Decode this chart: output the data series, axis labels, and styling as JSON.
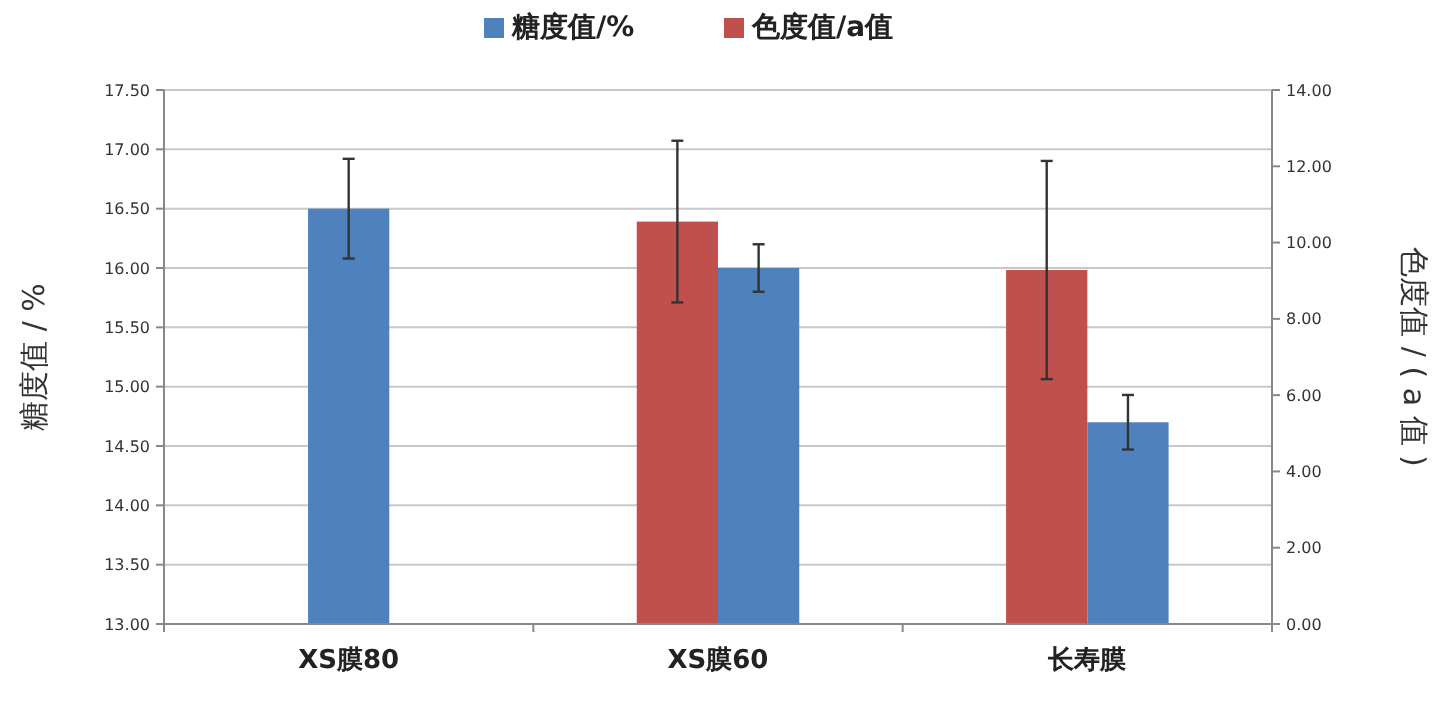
{
  "chart_data": {
    "type": "bar",
    "categories": [
      "XS膜80",
      "XS膜60",
      "长寿膜"
    ],
    "ylabel": "糖度值 / %",
    "y2label": "色度值 / ( a 值 )",
    "series": [
      {
        "name": "糖度值/%",
        "color": "#4f81bd",
        "values": [
          16.5,
          16.0,
          14.7
        ],
        "errors": [
          0.42,
          0.2,
          0.23
        ]
      },
      {
        "name": "色度值/a值",
        "color": "#c0504d",
        "axis": "y2",
        "values": [
          null,
          10.55,
          9.28
        ],
        "errors": [
          null,
          2.12,
          2.86
        ]
      }
    ],
    "ylim": [
      13,
      17.5
    ],
    "yticks": [
      {
        "value": 13,
        "label": "13.00"
      },
      {
        "value": 13.5,
        "label": "13.50"
      },
      {
        "value": 14,
        "label": "14.00"
      },
      {
        "value": 14.5,
        "label": "14.50"
      },
      {
        "value": 15,
        "label": "15.00"
      },
      {
        "value": 15.5,
        "label": "15.50"
      },
      {
        "value": 16,
        "label": "16.00"
      },
      {
        "value": 16.5,
        "label": "16.50"
      },
      {
        "value": 17,
        "label": "17.00"
      },
      {
        "value": 17.5,
        "label": "17.50"
      }
    ],
    "y2lim": [
      0,
      14
    ],
    "y2ticks": [
      {
        "value": 0,
        "label": "0.00"
      },
      {
        "value": 2,
        "label": "2.00"
      },
      {
        "value": 4,
        "label": "4.00"
      },
      {
        "value": 6,
        "label": "6.00"
      },
      {
        "value": 8,
        "label": "8.00"
      },
      {
        "value": 10,
        "label": "10.00"
      },
      {
        "value": 12,
        "label": "12.00"
      },
      {
        "value": 14,
        "label": "14.00"
      }
    ],
    "grid": "y",
    "legend": "top"
  }
}
